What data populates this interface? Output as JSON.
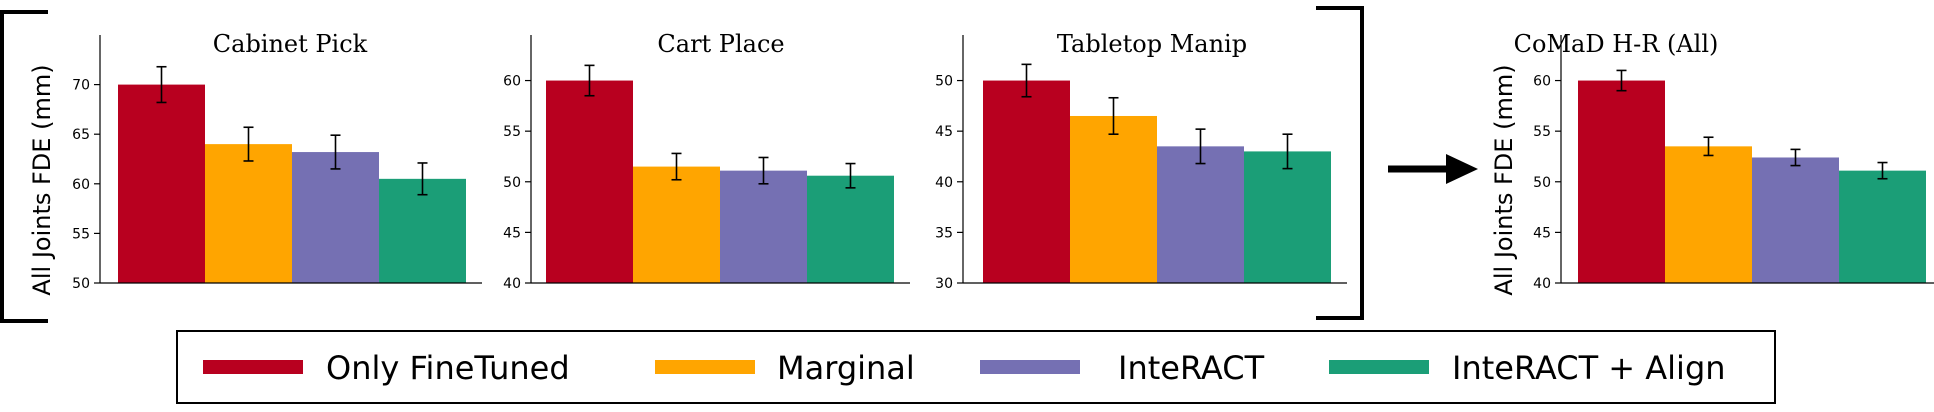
{
  "colors": {
    "only_finetuned": "#b8001f",
    "marginal": "#ffa500",
    "interact": "#7570b3",
    "interact_align": "#1b9e77",
    "axis": "#000000"
  },
  "ylabel": "All Joints FDE (mm)",
  "legend": {
    "placement": "bottom",
    "entries": [
      "Only FineTuned",
      "Marginal",
      "InteRACT",
      "InteRACT + Align"
    ]
  },
  "chart_data": [
    {
      "type": "bar",
      "title": "Cabinet Pick",
      "ylabel": "All Joints FDE (mm)",
      "ylim": [
        50,
        75
      ],
      "yticks": [
        50,
        55,
        60,
        65,
        70
      ],
      "series": [
        {
          "name": "Only FineTuned",
          "values": [
            70.0
          ],
          "error": [
            1.8
          ]
        },
        {
          "name": "Marginal",
          "values": [
            64.0
          ],
          "error": [
            1.7
          ]
        },
        {
          "name": "InteRACT",
          "values": [
            63.2
          ],
          "error": [
            1.7
          ]
        },
        {
          "name": "InteRACT + Align",
          "values": [
            60.5
          ],
          "error": [
            1.6
          ]
        }
      ]
    },
    {
      "type": "bar",
      "title": "Cart Place",
      "ylabel": "",
      "ylim": [
        40,
        64.5
      ],
      "yticks": [
        40,
        45,
        50,
        55,
        60
      ],
      "series": [
        {
          "name": "Only FineTuned",
          "values": [
            60.0
          ],
          "error": [
            1.5
          ]
        },
        {
          "name": "Marginal",
          "values": [
            51.5
          ],
          "error": [
            1.3
          ]
        },
        {
          "name": "InteRACT",
          "values": [
            51.1
          ],
          "error": [
            1.3
          ]
        },
        {
          "name": "InteRACT + Align",
          "values": [
            50.6
          ],
          "error": [
            1.2
          ]
        }
      ]
    },
    {
      "type": "bar",
      "title": "Tabletop Manip",
      "ylabel": "",
      "ylim": [
        30,
        54.5
      ],
      "yticks": [
        30,
        35,
        40,
        45,
        50
      ],
      "series": [
        {
          "name": "Only FineTuned",
          "values": [
            50.0
          ],
          "error": [
            1.6
          ]
        },
        {
          "name": "Marginal",
          "values": [
            46.5
          ],
          "error": [
            1.8
          ]
        },
        {
          "name": "InteRACT",
          "values": [
            43.5
          ],
          "error": [
            1.7
          ]
        },
        {
          "name": "InteRACT + Align",
          "values": [
            43.0
          ],
          "error": [
            1.7
          ]
        }
      ]
    },
    {
      "type": "bar",
      "title": "CoMaD H-R (All)",
      "ylabel": "All Joints FDE (mm)",
      "ylim": [
        40,
        64.5
      ],
      "yticks": [
        40,
        45,
        50,
        55,
        60
      ],
      "series": [
        {
          "name": "Only FineTuned",
          "values": [
            60.0
          ],
          "error": [
            1.0
          ]
        },
        {
          "name": "Marginal",
          "values": [
            53.5
          ],
          "error": [
            0.9
          ]
        },
        {
          "name": "InteRACT",
          "values": [
            52.4
          ],
          "error": [
            0.8
          ]
        },
        {
          "name": "InteRACT + Align",
          "values": [
            51.1
          ],
          "error": [
            0.8
          ]
        }
      ]
    }
  ]
}
